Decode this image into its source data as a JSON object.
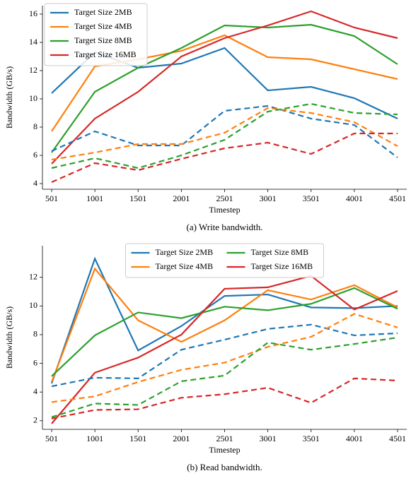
{
  "chart_data": [
    {
      "type": "line",
      "caption": "(a)   Write bandwidth.",
      "xlabel": "Timestep",
      "ylabel": "Bandwidth (GB/s)",
      "categories": [
        "501",
        "1001",
        "1501",
        "2001",
        "2501",
        "3001",
        "3501",
        "4001",
        "4501"
      ],
      "ylim": [
        3.6,
        16.6
      ],
      "yticks": [
        4,
        6,
        8,
        10,
        12,
        14,
        16
      ],
      "legend": "upper left",
      "legend_columns": 1,
      "series": [
        {
          "name": "Target Size 2MB",
          "color": "#1f77b4",
          "values": [
            10.4,
            13.3,
            12.2,
            12.5,
            13.6,
            10.6,
            10.85,
            10.05,
            8.6
          ]
        },
        {
          "name": "Target Size 4MB",
          "color": "#ff7f0e",
          "values": [
            7.7,
            12.3,
            12.8,
            13.4,
            14.5,
            12.95,
            12.8,
            12.1,
            11.4
          ]
        },
        {
          "name": "Target Size 8MB",
          "color": "#2ca02c",
          "values": [
            6.2,
            10.5,
            12.2,
            13.6,
            15.2,
            15.05,
            15.25,
            14.45,
            12.45
          ]
        },
        {
          "name": "Target Size 16MB",
          "color": "#d62728",
          "values": [
            5.4,
            8.6,
            10.5,
            13.0,
            14.3,
            15.2,
            16.2,
            15.05,
            14.3
          ]
        },
        {
          "color": "#1f77b4",
          "dash": true,
          "values": [
            6.3,
            7.7,
            6.7,
            6.7,
            9.15,
            9.5,
            8.6,
            8.15,
            5.85
          ]
        },
        {
          "color": "#ff7f0e",
          "dash": true,
          "values": [
            5.7,
            6.2,
            6.8,
            6.8,
            7.6,
            9.35,
            9.0,
            8.35,
            6.65
          ]
        },
        {
          "color": "#2ca02c",
          "dash": true,
          "values": [
            5.1,
            5.8,
            5.1,
            6.0,
            7.1,
            9.1,
            9.65,
            9.0,
            8.9
          ]
        },
        {
          "color": "#d62728",
          "dash": true,
          "values": [
            4.1,
            5.45,
            4.95,
            5.75,
            6.5,
            6.9,
            6.1,
            7.55,
            7.55
          ]
        }
      ]
    },
    {
      "type": "line",
      "caption": "(b)   Read bandwidth.",
      "xlabel": "Timestep",
      "ylabel": "Bandwidth (GB/s)",
      "categories": [
        "501",
        "1001",
        "1501",
        "2001",
        "2501",
        "3001",
        "3501",
        "4001",
        "4501"
      ],
      "ylim": [
        1.4,
        14.2
      ],
      "yticks": [
        2,
        4,
        6,
        8,
        10,
        12
      ],
      "legend": "upper center",
      "legend_columns": 2,
      "series": [
        {
          "name": "Target Size 2MB",
          "color": "#1f77b4",
          "values": [
            4.6,
            13.3,
            6.9,
            8.6,
            10.7,
            10.8,
            9.9,
            9.85,
            10.0
          ]
        },
        {
          "name": "Target Size 4MB",
          "color": "#ff7f0e",
          "values": [
            4.7,
            12.6,
            9.0,
            7.5,
            9.0,
            11.1,
            10.45,
            11.45,
            9.9
          ]
        },
        {
          "name": "Target Size 8MB",
          "color": "#2ca02c",
          "values": [
            5.1,
            7.95,
            9.55,
            9.15,
            9.95,
            9.7,
            10.15,
            11.25,
            9.8
          ]
        },
        {
          "name": "Target Size 16MB",
          "color": "#d62728",
          "values": [
            1.8,
            5.35,
            6.4,
            8.0,
            11.2,
            11.3,
            12.1,
            9.75,
            11.05
          ]
        },
        {
          "color": "#1f77b4",
          "dash": true,
          "values": [
            4.4,
            5.0,
            4.95,
            6.95,
            7.65,
            8.4,
            8.7,
            7.95,
            8.1
          ]
        },
        {
          "color": "#ff7f0e",
          "dash": true,
          "values": [
            3.3,
            3.7,
            4.7,
            5.55,
            6.05,
            7.15,
            7.85,
            9.45,
            8.5
          ]
        },
        {
          "color": "#2ca02c",
          "dash": true,
          "values": [
            2.25,
            3.2,
            3.1,
            4.75,
            5.15,
            7.45,
            6.95,
            7.35,
            7.8
          ]
        },
        {
          "color": "#d62728",
          "dash": true,
          "values": [
            2.15,
            2.75,
            2.8,
            3.6,
            3.85,
            4.3,
            3.25,
            4.95,
            4.8
          ]
        }
      ]
    }
  ]
}
